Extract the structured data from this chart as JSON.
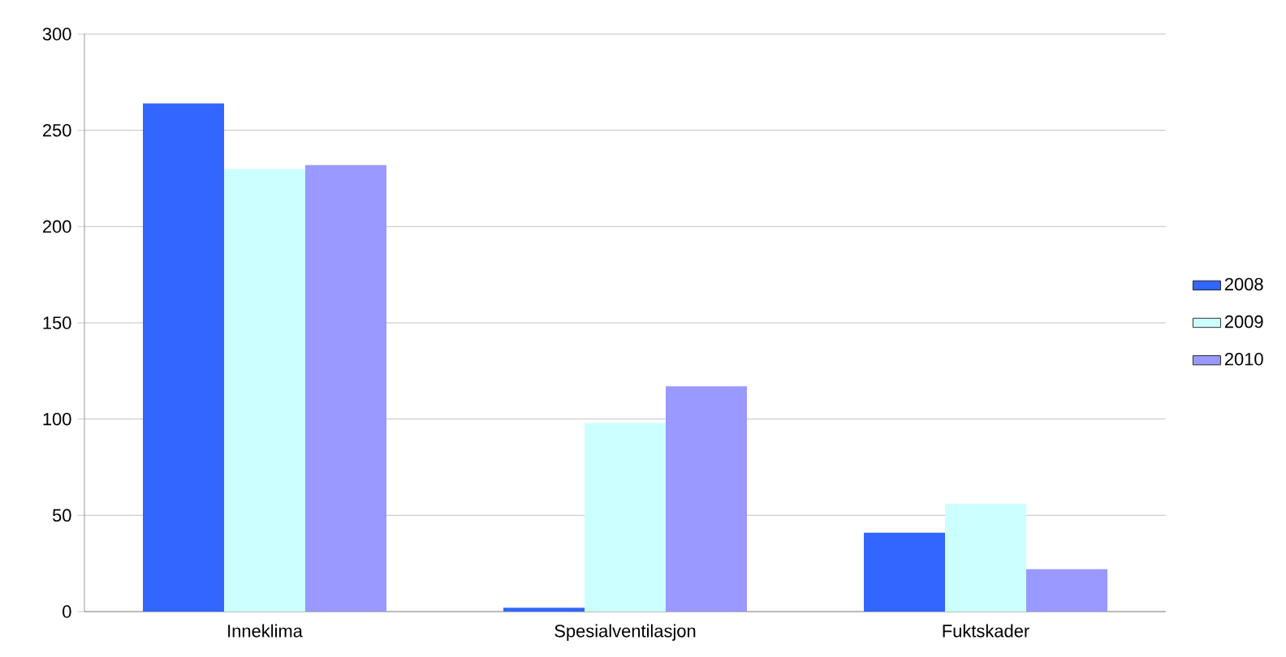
{
  "chart_data": {
    "type": "bar",
    "categories": [
      "Inneklima",
      "Spesialventilasjon",
      "Fuktskader"
    ],
    "series": [
      {
        "name": "2008",
        "color": "#3366ff",
        "values": [
          264,
          2,
          41
        ]
      },
      {
        "name": "2009",
        "color": "#ccffff",
        "values": [
          230,
          98,
          56
        ]
      },
      {
        "name": "2010",
        "color": "#9999ff",
        "values": [
          232,
          117,
          22
        ]
      }
    ],
    "ylim": [
      0,
      300
    ],
    "yticks": [
      0,
      50,
      100,
      150,
      200,
      250,
      300
    ],
    "grid": "y",
    "legend": "right"
  }
}
